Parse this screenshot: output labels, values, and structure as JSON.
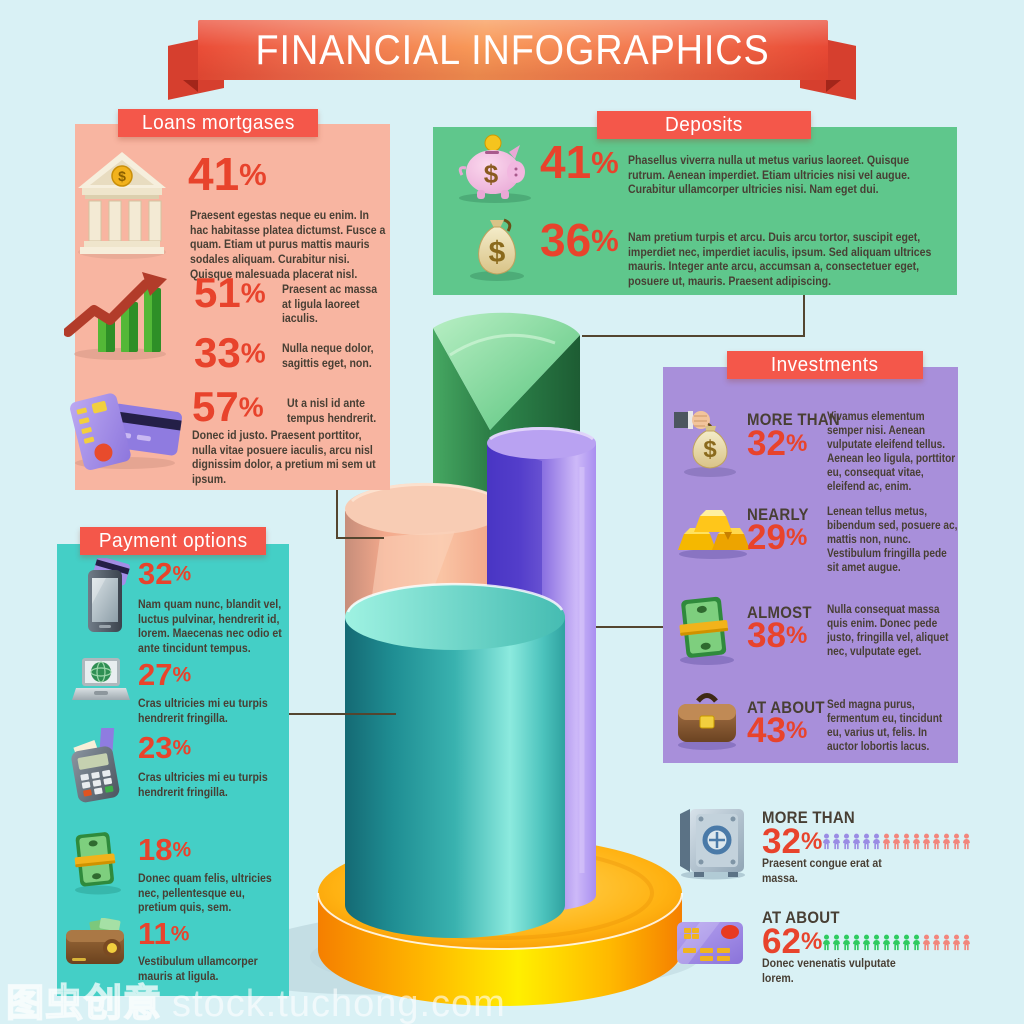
{
  "title": "FINANCIAL INFOGRAPHICS",
  "percent_sign": "%",
  "watermark": {
    "cjk": "图虫创意",
    "latin": "stock.tuchong.com"
  },
  "palette": {
    "background": "#d9f1f5",
    "ribbon_red": "#ee4f38",
    "badge_red": "#f4574a",
    "number_red": "#e8432c",
    "loans_bg": "#f8b5a1",
    "deposits_bg": "#5fc78c",
    "investments_bg": "#a88fda",
    "payment_bg": "#44cfc6",
    "podium_yellow": "#ffb300",
    "connector": "#54452f",
    "people": {
      "purple": "#9a8ce4",
      "salmon": "#f2867c",
      "green": "#2fcb5f"
    }
  },
  "loans": {
    "title": "Loans mortgases",
    "items": [
      {
        "icon": "bank-icon",
        "value": "41",
        "text": "Praesent egestas neque eu enim. In hac habitasse platea dictumst. Fusce a quam. Etiam ut purus mattis mauris sodales aliquam. Curabitur nisi. Quisque malesuada placerat nisl."
      },
      {
        "icon": "growth-chart-icon",
        "value": "51",
        "text": "Praesent ac massa at ligula laoreet iaculis."
      },
      {
        "icon": null,
        "value": "33",
        "text": "Nulla neque dolor, sagittis eget, non."
      },
      {
        "icon": "credit-cards-icon",
        "value": "57",
        "text_side": "Ut a nisl id ante tempus hendrerit.",
        "text": "Donec id justo. Praesent porttitor, nulla vitae posuere iaculis, arcu nisl dignissim dolor, a pretium mi sem ut ipsum."
      }
    ]
  },
  "deposits": {
    "title": "Deposits",
    "items": [
      {
        "icon": "piggy-bank-icon",
        "value": "41",
        "text": "Phasellus viverra nulla ut metus varius laoreet. Quisque rutrum. Aenean imperdiet. Etiam ultricies nisi vel augue. Curabitur ullamcorper ultricies nisi. Nam eget dui."
      },
      {
        "icon": "money-bag-icon",
        "value": "36",
        "text": "Nam pretium turpis et arcu. Duis arcu tortor, suscipit eget, imperdiet nec, imperdiet iaculis, ipsum. Sed aliquam ultrices mauris. Integer ante arcu, accumsan a, consectetuer eget, posuere ut, mauris. Praesent adipiscing."
      }
    ]
  },
  "investments": {
    "title": "Investments",
    "items": [
      {
        "icon": "hand-money-bag-icon",
        "label": "MORE THAN",
        "value": "32",
        "text": "Vivamus elementum semper nisi. Aenean vulputate eleifend tellus. Aenean leo ligula, porttitor eu, consequat vitae, eleifend ac, enim."
      },
      {
        "icon": "gold-bars-icon",
        "label": "NEARLY",
        "value": "29",
        "text": "Lenean tellus metus, bibendum sed, posuere ac, mattis non, nunc. Vestibulum fringilla pede sit amet augue."
      },
      {
        "icon": "banknotes-icon",
        "label": "ALMOST",
        "value": "38",
        "text": "Nulla consequat massa quis enim. Donec pede justo, fringilla vel, aliquet nec, vulputate eget."
      },
      {
        "icon": "briefcase-icon",
        "label": "AT ABOUT",
        "value": "43",
        "text": "Sed magna purus, fermentum eu, tincidunt eu, varius ut, felis. In auctor lobortis lacus."
      }
    ]
  },
  "payment": {
    "title": "Payment options",
    "items": [
      {
        "icon": "phone-card-icon",
        "value": "32",
        "text": "Nam quam nunc, blandit vel, luctus pulvinar, hendrerit id, lorem. Maecenas nec odio et ante tincidunt tempus."
      },
      {
        "icon": "laptop-icon",
        "value": "27",
        "text": "Cras ultricies mi eu turpis hendrerit fringilla."
      },
      {
        "icon": "pos-terminal-icon",
        "value": "23",
        "text": "Cras ultricies mi eu turpis hendrerit fringilla."
      },
      {
        "icon": "banknote-stack-icon",
        "value": "18",
        "text": "Donec quam felis, ultricies nec, pellentesque eu, pretium quis, sem."
      },
      {
        "icon": "wallet-icon",
        "value": "11",
        "text": "Vestibulum ullamcorper mauris at ligula."
      }
    ]
  },
  "footer_stats": [
    {
      "icon": "safe-icon",
      "label": "MORE THAN",
      "value": "32",
      "text": "Praesent congue erat at massa.",
      "people": {
        "purple": 6,
        "salmon": 9
      }
    },
    {
      "icon": "credit-card-icon",
      "label": "AT ABOUT",
      "value": "62",
      "text": "Donec venenatis vulputate lorem.",
      "people": {
        "green": 10,
        "salmon": 5
      }
    }
  ],
  "chart_data": [
    {
      "type": "bar",
      "title": "Loans mortgases",
      "categories": [
        "bank",
        "growth",
        "growth",
        "credit cards"
      ],
      "values": [
        41,
        51,
        33,
        57
      ],
      "unit": "%"
    },
    {
      "type": "bar",
      "title": "Deposits",
      "categories": [
        "piggy bank",
        "money bag"
      ],
      "values": [
        41,
        36
      ],
      "unit": "%"
    },
    {
      "type": "bar",
      "title": "Investments",
      "categories": [
        "MORE THAN",
        "NEARLY",
        "ALMOST",
        "AT ABOUT"
      ],
      "values": [
        32,
        29,
        38,
        43
      ],
      "unit": "%"
    },
    {
      "type": "bar",
      "title": "Payment options",
      "categories": [
        "mobile",
        "online",
        "pos terminal",
        "cash",
        "wallet"
      ],
      "values": [
        32,
        27,
        23,
        18,
        11
      ],
      "unit": "%"
    },
    {
      "type": "bar",
      "title": "People pictograms",
      "categories": [
        "MORE THAN (safe)",
        "AT ABOUT (credit card)"
      ],
      "values": [
        32,
        62
      ],
      "unit": "%",
      "note": "15 person icons per row: 6 purple + 9 salmon; 10 green + 5 salmon"
    },
    {
      "type": "bar",
      "title": "Central 3D cylinder chart",
      "categories": [
        "green",
        "purple",
        "salmon",
        "teal"
      ],
      "values": [
        100,
        82,
        69,
        52
      ],
      "ylabel": "estimated relative height %",
      "note": "unlabeled decorative 3D chart on yellow podium"
    }
  ]
}
